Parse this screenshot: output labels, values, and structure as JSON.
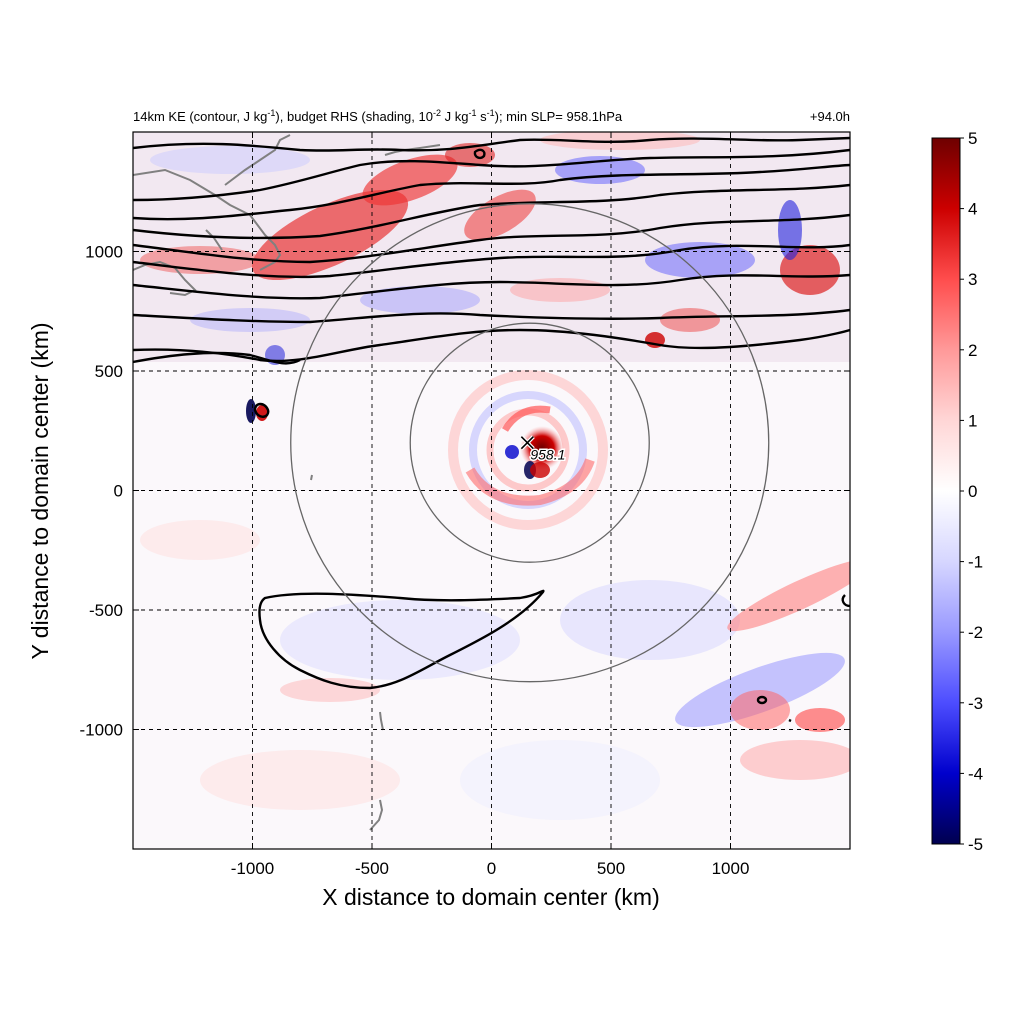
{
  "chart_data": {
    "type": "heatmap",
    "title": "14km KE (contour, J kg-1), budget RHS (shading, 10-2 J kg-1 s-1); min SLP= 958.1hPa",
    "title_parts": {
      "p1": "14km KE (contour, J kg",
      "p1sup": "-1",
      "p2": "), budget RHS (shading, 10",
      "p2sup": "-2",
      "p3": " J kg",
      "p3sup": "-1",
      "p4": " s",
      "p4sup": "-1",
      "p5": "); min SLP= 958.1hPa"
    },
    "time_label": "+94.0h",
    "xlabel": "X distance to domain center (km)",
    "ylabel": "Y distance to domain center (km)",
    "xlim": [
      -1500,
      1500
    ],
    "ylim": [
      -1500,
      1500
    ],
    "xticks": [
      -1000,
      -500,
      0,
      500,
      1000
    ],
    "yticks": [
      -1000,
      -500,
      0,
      500,
      1000
    ],
    "xtick_labels": [
      "-1000",
      "-500",
      "0",
      "500",
      "1000"
    ],
    "ytick_labels": [
      "-1000",
      "-500",
      "0",
      "500",
      "1000"
    ],
    "grid": true,
    "colorbar": {
      "min": -5,
      "max": 5,
      "ticks": [
        5,
        4,
        3,
        2,
        1,
        0,
        -1,
        -2,
        -3,
        -4,
        -5
      ],
      "tick_labels": [
        "5",
        "4",
        "3",
        "2",
        "1",
        "0",
        "-1",
        "-2",
        "-3",
        "-4",
        "-5"
      ],
      "colormap": [
        "#00004f",
        "#0000cc",
        "#4d4dff",
        "#9999ff",
        "#d6d6ff",
        "#ffffff",
        "#ffd6d6",
        "#ff9999",
        "#ff4d4d",
        "#cc0000",
        "#6e0000"
      ]
    },
    "storm_center": {
      "x": 150,
      "y": 200,
      "label": "958.1"
    },
    "range_circles": [
      {
        "center_x": 160,
        "center_y": 200,
        "radius_km": 500
      },
      {
        "center_x": 160,
        "center_y": 200,
        "radius_km": 1000
      }
    ],
    "min_slp_hPa": 958.1
  }
}
